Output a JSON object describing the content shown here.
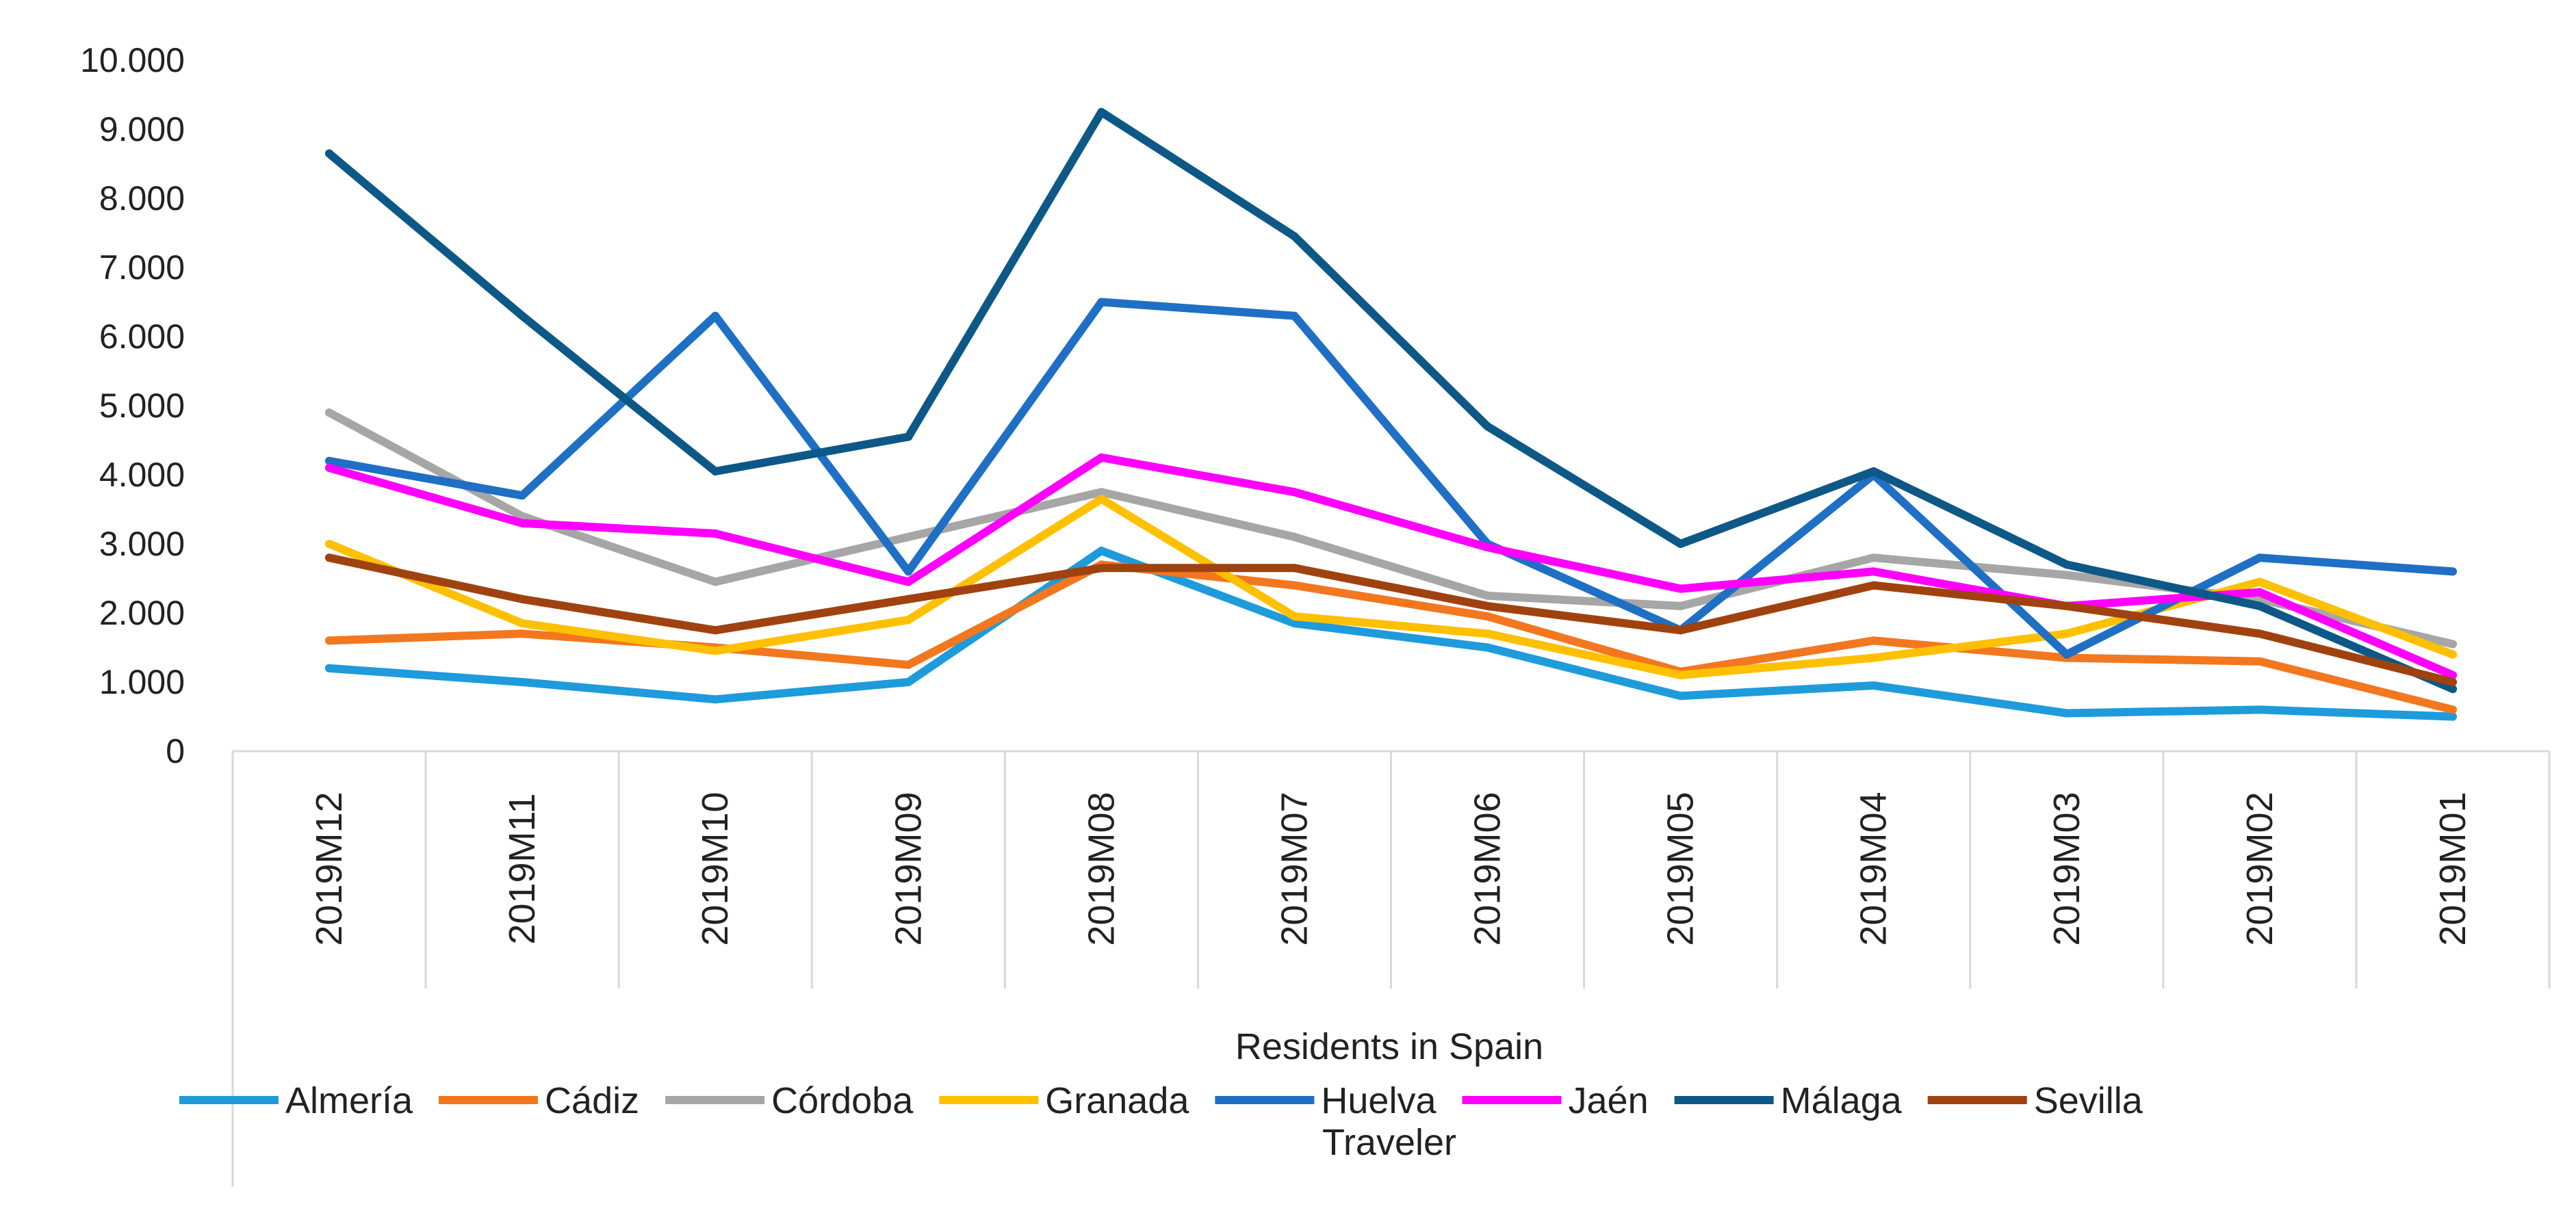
{
  "chart_data": {
    "type": "line",
    "title": "",
    "xlabel": "Residents in Spain",
    "ylabel": "",
    "caption": "Traveler",
    "categories": [
      "2019M12",
      "2019M11",
      "2019M10",
      "2019M09",
      "2019M08",
      "2019M07",
      "2019M06",
      "2019M05",
      "2019M04",
      "2019M03",
      "2019M02",
      "2019M01"
    ],
    "ylim": [
      0,
      10000
    ],
    "yticks": [
      0,
      1000,
      2000,
      3000,
      4000,
      5000,
      6000,
      7000,
      8000,
      9000,
      10000
    ],
    "ytick_labels": [
      "0",
      "1.000",
      "2.000",
      "3.000",
      "4.000",
      "5.000",
      "6.000",
      "7.000",
      "8.000",
      "9.000",
      "10.000"
    ],
    "grid": false,
    "legend_position": "bottom",
    "series": [
      {
        "name": "Almería",
        "color": "#1E9BDB",
        "values": [
          1200,
          1000,
          750,
          1000,
          2900,
          1850,
          1500,
          800,
          950,
          550,
          600,
          500
        ]
      },
      {
        "name": "Cádiz",
        "color": "#F2771F",
        "values": [
          1600,
          1700,
          1500,
          1250,
          2700,
          2400,
          1950,
          1150,
          1600,
          1350,
          1300,
          600
        ]
      },
      {
        "name": "Córdoba",
        "color": "#A6A6A6",
        "values": [
          4900,
          3400,
          2450,
          3100,
          3750,
          3100,
          2250,
          2100,
          2800,
          2550,
          2200,
          1550
        ]
      },
      {
        "name": "Granada",
        "color": "#FFC000",
        "values": [
          3000,
          1850,
          1450,
          1900,
          3650,
          1950,
          1700,
          1100,
          1350,
          1700,
          2450,
          1400
        ]
      },
      {
        "name": "Huelva",
        "color": "#1F6FC5",
        "values": [
          4200,
          3700,
          6300,
          2600,
          6500,
          6300,
          3000,
          1750,
          4000,
          1400,
          2800,
          2600
        ]
      },
      {
        "name": "Jaén",
        "color": "#FF00FF",
        "values": [
          4100,
          3300,
          3150,
          2450,
          4250,
          3750,
          2950,
          2350,
          2600,
          2100,
          2300,
          1100
        ]
      },
      {
        "name": "Málaga",
        "color": "#0D5886",
        "values": [
          8650,
          6300,
          4050,
          4550,
          9250,
          7450,
          4700,
          3000,
          4050,
          2700,
          2100,
          900
        ]
      },
      {
        "name": "Sevilla",
        "color": "#A0420F",
        "values": [
          2800,
          2200,
          1750,
          2200,
          2650,
          2650,
          2100,
          1750,
          2400,
          2100,
          1700,
          1000
        ]
      }
    ]
  }
}
